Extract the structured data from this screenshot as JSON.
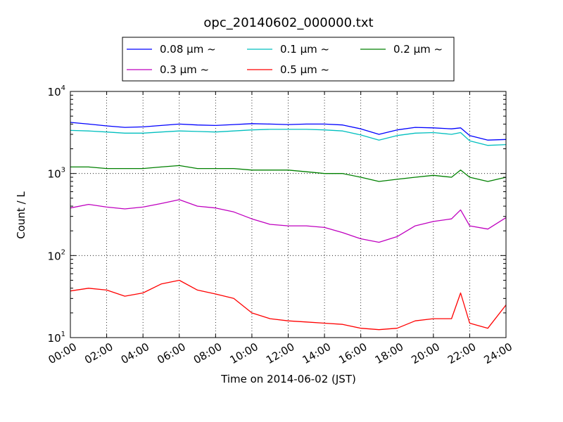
{
  "chart_data": {
    "type": "line",
    "title": "opc_20140602_000000.txt",
    "xlabel": "Time on 2014-06-02 (JST)",
    "ylabel": "Count / L",
    "yscale": "log",
    "ylim": [
      10,
      10000
    ],
    "xlim": [
      "00:00",
      "24:00"
    ],
    "grid": true,
    "legend_placement": "top-center, above plot",
    "x_ticks": [
      "00:00",
      "02:00",
      "04:00",
      "06:00",
      "08:00",
      "10:00",
      "12:00",
      "14:00",
      "16:00",
      "18:00",
      "20:00",
      "22:00",
      "24:00"
    ],
    "y_ticks": [
      {
        "base": "10",
        "exp": "1"
      },
      {
        "base": "10",
        "exp": "2"
      },
      {
        "base": "10",
        "exp": "3"
      },
      {
        "base": "10",
        "exp": "4"
      }
    ],
    "x": [
      "00:00",
      "01:00",
      "02:00",
      "03:00",
      "04:00",
      "05:00",
      "06:00",
      "07:00",
      "08:00",
      "09:00",
      "10:00",
      "11:00",
      "12:00",
      "13:00",
      "14:00",
      "15:00",
      "16:00",
      "17:00",
      "18:00",
      "19:00",
      "20:00",
      "21:00",
      "21:30",
      "22:00",
      "23:00",
      "24:00"
    ],
    "series": [
      {
        "name": "0.08 μm ~",
        "color": "#0000ff",
        "values": [
          4200,
          4000,
          3800,
          3650,
          3700,
          3850,
          4000,
          3900,
          3850,
          3950,
          4050,
          4000,
          3950,
          4000,
          4000,
          3900,
          3500,
          3000,
          3400,
          3650,
          3600,
          3500,
          3600,
          2900,
          2550,
          2600
        ]
      },
      {
        "name": "0.1 μm ~",
        "color": "#00bfbf",
        "values": [
          3350,
          3300,
          3200,
          3100,
          3100,
          3200,
          3300,
          3250,
          3200,
          3300,
          3400,
          3450,
          3450,
          3450,
          3400,
          3300,
          2950,
          2550,
          2900,
          3100,
          3150,
          3000,
          3150,
          2500,
          2200,
          2250
        ]
      },
      {
        "name": "0.2 μm ~",
        "color": "#008000",
        "values": [
          1200,
          1200,
          1150,
          1150,
          1150,
          1200,
          1250,
          1150,
          1150,
          1150,
          1100,
          1100,
          1100,
          1050,
          1000,
          1000,
          900,
          800,
          850,
          900,
          950,
          900,
          1100,
          900,
          800,
          900
        ]
      },
      {
        "name": "0.3 μm ~",
        "color": "#bf00bf",
        "values": [
          380,
          420,
          390,
          370,
          390,
          430,
          480,
          400,
          380,
          340,
          280,
          240,
          230,
          230,
          220,
          190,
          160,
          145,
          170,
          230,
          260,
          280,
          360,
          230,
          210,
          290
        ]
      },
      {
        "name": "0.5 μm ~",
        "color": "#ff0000",
        "values": [
          37,
          40,
          38,
          32,
          35,
          45,
          50,
          38,
          34,
          30,
          20,
          17,
          16,
          15.5,
          15,
          14.5,
          13,
          12.5,
          13,
          16,
          17,
          17,
          35,
          15,
          13,
          25
        ]
      }
    ]
  }
}
